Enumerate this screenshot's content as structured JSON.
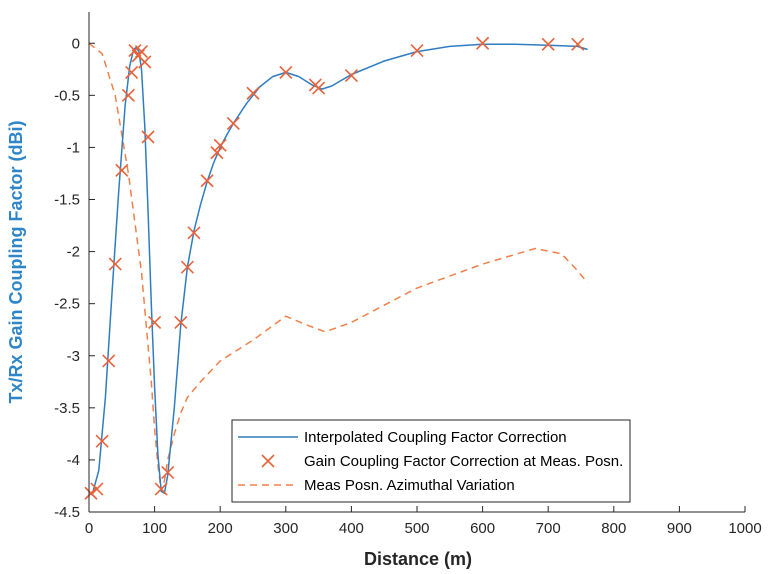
{
  "chart_data": {
    "type": "line",
    "title": "",
    "xlabel": "Distance (m)",
    "ylabel": "Tx/Rx Gain Coupling Factor (dBi)",
    "xlim": [
      0,
      1000
    ],
    "ylim": [
      -4.5,
      0.3
    ],
    "xticks": [
      0,
      100,
      200,
      300,
      400,
      500,
      600,
      700,
      800,
      900,
      1000
    ],
    "yticks": [
      0,
      -0.5,
      -1,
      -1.5,
      -2,
      -2.5,
      -3,
      -3.5,
      -4,
      -4.5
    ],
    "xtick_labels": [
      "0",
      "100",
      "200",
      "300",
      "400",
      "500",
      "600",
      "700",
      "800",
      "900",
      "1000"
    ],
    "ytick_labels": [
      "0",
      "-0.5",
      "-1",
      "-1.5",
      "-2",
      "-2.5",
      "-3",
      "-3.5",
      "-4",
      "-4.5"
    ],
    "grid": false,
    "legend_position": "bottom-center",
    "colors": {
      "interpolated": "#2e7dc0",
      "markers": "#e8623a",
      "azimuthal": "#f0804a",
      "ylabel": "#2e86c8",
      "axis": "#262626"
    },
    "series": [
      {
        "name": "Interpolated Coupling Factor Correction",
        "style": "solid-line",
        "x": [
          5,
          15,
          25,
          35,
          45,
          55,
          62,
          68,
          72,
          76,
          80,
          85,
          90,
          95,
          100,
          105,
          110,
          115,
          120,
          130,
          140,
          150,
          160,
          170,
          180,
          190,
          200,
          210,
          220,
          240,
          260,
          280,
          300,
          320,
          340,
          355,
          370,
          400,
          450,
          500,
          550,
          600,
          650,
          700,
          745,
          760
        ],
        "y": [
          -4.33,
          -4.1,
          -3.4,
          -2.4,
          -1.45,
          -0.6,
          -0.22,
          -0.06,
          -0.04,
          -0.08,
          -0.25,
          -0.8,
          -1.6,
          -2.5,
          -3.3,
          -3.95,
          -4.3,
          -4.32,
          -4.15,
          -3.5,
          -2.7,
          -2.15,
          -1.8,
          -1.55,
          -1.33,
          -1.15,
          -1.0,
          -0.88,
          -0.77,
          -0.58,
          -0.42,
          -0.32,
          -0.28,
          -0.32,
          -0.4,
          -0.44,
          -0.41,
          -0.3,
          -0.17,
          -0.08,
          -0.03,
          -0.01,
          -0.01,
          -0.02,
          -0.03,
          -0.06
        ]
      },
      {
        "name": "Gain Coupling Factor Correction at Meas. Posn.",
        "style": "x-markers",
        "x": [
          3,
          12,
          20,
          30,
          40,
          50,
          60,
          65,
          70,
          75,
          80,
          85,
          90,
          100,
          110,
          120,
          140,
          150,
          160,
          180,
          195,
          200,
          220,
          250,
          300,
          345,
          350,
          400,
          500,
          600,
          700,
          745
        ],
        "y": [
          -4.32,
          -4.28,
          -3.82,
          -3.05,
          -2.12,
          -1.22,
          -0.5,
          -0.28,
          -0.07,
          -0.12,
          -0.08,
          -0.18,
          -0.9,
          -2.68,
          -4.28,
          -4.12,
          -2.68,
          -2.15,
          -1.82,
          -1.32,
          -1.05,
          -0.98,
          -0.77,
          -0.48,
          -0.28,
          -0.4,
          -0.43,
          -0.31,
          -0.07,
          0.0,
          -0.01,
          -0.01
        ]
      },
      {
        "name": "Meas Posn. Azimuthal Variation",
        "style": "dashed-line",
        "x": [
          0,
          20,
          40,
          60,
          80,
          95,
          100,
          105,
          110,
          115,
          120,
          130,
          140,
          150,
          170,
          200,
          250,
          300,
          330,
          360,
          400,
          500,
          600,
          680,
          720,
          740,
          760
        ],
        "y": [
          0.0,
          -0.1,
          -0.5,
          -1.25,
          -2.2,
          -3.25,
          -3.7,
          -4.05,
          -4.3,
          -4.2,
          -4.0,
          -3.75,
          -3.55,
          -3.4,
          -3.25,
          -3.05,
          -2.85,
          -2.62,
          -2.7,
          -2.77,
          -2.68,
          -2.35,
          -2.12,
          -1.97,
          -2.02,
          -2.15,
          -2.3
        ]
      }
    ]
  }
}
